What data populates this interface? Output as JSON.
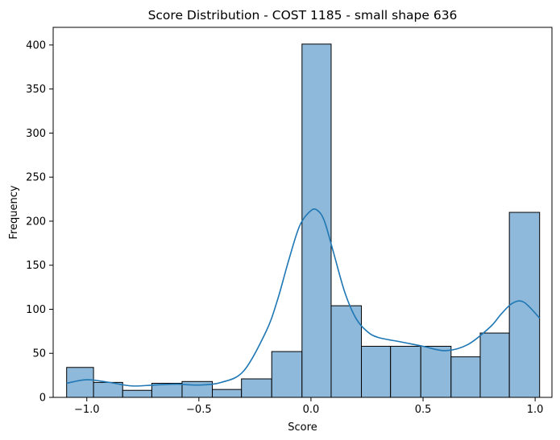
{
  "chart_data": {
    "type": "bar",
    "title": "Score Distribution - COST 1185 - small shape 636",
    "xlabel": "Score",
    "ylabel": "Frequency",
    "xlim": [
      -1.15,
      1.075
    ],
    "ylim": [
      0,
      420
    ],
    "xticks": [
      -1.0,
      -0.5,
      0.0,
      0.5,
      1.0
    ],
    "xtick_labels": [
      "−1.0",
      "−0.5",
      "0.0",
      "0.5",
      "1.0"
    ],
    "yticks": [
      0,
      50,
      100,
      150,
      200,
      250,
      300,
      350,
      400
    ],
    "ytick_labels": [
      "0",
      "50",
      "100",
      "150",
      "200",
      "250",
      "300",
      "350",
      "400"
    ],
    "grid": false,
    "bins": [
      {
        "x0": -1.09,
        "x1": -0.97,
        "count": 34
      },
      {
        "x0": -0.97,
        "x1": -0.84,
        "count": 17
      },
      {
        "x0": -0.84,
        "x1": -0.71,
        "count": 8
      },
      {
        "x0": -0.71,
        "x1": -0.575,
        "count": 16
      },
      {
        "x0": -0.575,
        "x1": -0.44,
        "count": 18
      },
      {
        "x0": -0.44,
        "x1": -0.31,
        "count": 9
      },
      {
        "x0": -0.31,
        "x1": -0.175,
        "count": 21
      },
      {
        "x0": -0.175,
        "x1": -0.04,
        "count": 52
      },
      {
        "x0": -0.04,
        "x1": 0.09,
        "count": 401
      },
      {
        "x0": 0.09,
        "x1": 0.225,
        "count": 104
      },
      {
        "x0": 0.225,
        "x1": 0.355,
        "count": 58
      },
      {
        "x0": 0.355,
        "x1": 0.49,
        "count": 58
      },
      {
        "x0": 0.49,
        "x1": 0.625,
        "count": 58
      },
      {
        "x0": 0.625,
        "x1": 0.755,
        "count": 46
      },
      {
        "x0": 0.755,
        "x1": 0.885,
        "count": 73
      },
      {
        "x0": 0.885,
        "x1": 1.02,
        "count": 210
      }
    ],
    "kde": {
      "x": [
        -1.09,
        -1.0,
        -0.9,
        -0.8,
        -0.7,
        -0.6,
        -0.5,
        -0.4,
        -0.3,
        -0.2,
        -0.15,
        -0.1,
        -0.05,
        0.0,
        0.03,
        0.06,
        0.1,
        0.15,
        0.2,
        0.25,
        0.3,
        0.4,
        0.5,
        0.6,
        0.7,
        0.8,
        0.85,
        0.9,
        0.95,
        1.02
      ],
      "y": [
        16,
        20,
        17,
        13,
        14,
        15,
        14,
        17,
        30,
        75,
        110,
        155,
        195,
        212,
        212,
        200,
        165,
        120,
        90,
        75,
        68,
        63,
        58,
        53,
        60,
        80,
        95,
        107,
        108,
        90
      ]
    },
    "colors": {
      "bar_fill": "#8fb9da",
      "bar_edge": "#000000",
      "kde_line": "#1f77b4"
    }
  }
}
